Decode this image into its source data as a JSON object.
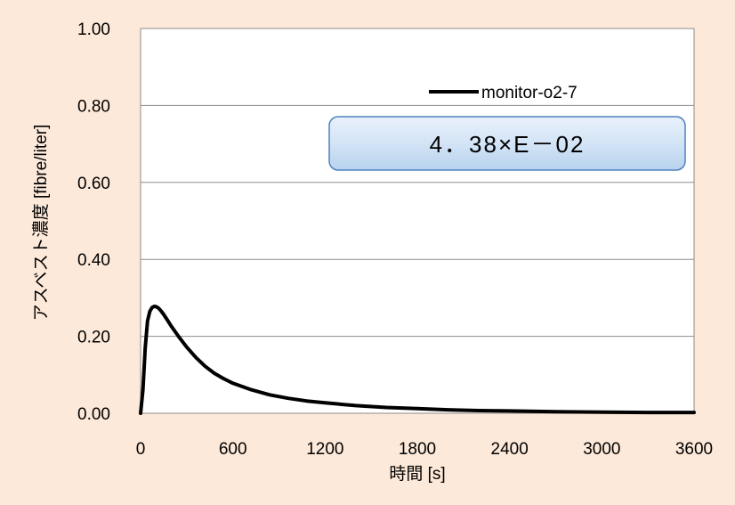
{
  "chart_data": {
    "type": "line",
    "xlabel": "時間 [s]",
    "ylabel": "アスベスト濃度 [fibre/liter]",
    "xlim": [
      0,
      3600
    ],
    "ylim": [
      0,
      1.0
    ],
    "xticks": [
      0,
      600,
      1200,
      1800,
      2400,
      3000,
      3600
    ],
    "yticks": [
      0.0,
      0.2,
      0.4,
      0.6,
      0.8,
      1.0
    ],
    "ytick_labels": [
      "0.00",
      "0.20",
      "0.40",
      "0.60",
      "0.80",
      "1.00"
    ],
    "grid": "horizontal",
    "legend": "top-right",
    "series": [
      {
        "name": "monitor-o2-7",
        "color": "#000000",
        "x": [
          0,
          15,
          30,
          45,
          60,
          75,
          90,
          100,
          110,
          120,
          135,
          150,
          175,
          200,
          250,
          300,
          360,
          420,
          480,
          540,
          600,
          720,
          840,
          960,
          1080,
          1200,
          1400,
          1600,
          1800,
          2000,
          2200,
          2400,
          2700,
          3000,
          3300,
          3600
        ],
        "y": [
          0.0,
          0.06,
          0.17,
          0.24,
          0.265,
          0.275,
          0.278,
          0.277,
          0.275,
          0.272,
          0.265,
          0.257,
          0.242,
          0.226,
          0.198,
          0.172,
          0.145,
          0.122,
          0.104,
          0.09,
          0.078,
          0.061,
          0.048,
          0.039,
          0.032,
          0.027,
          0.02,
          0.015,
          0.012,
          0.009,
          0.007,
          0.006,
          0.004,
          0.003,
          0.002,
          0.002
        ]
      }
    ],
    "annotation": "4．38×E－02"
  }
}
